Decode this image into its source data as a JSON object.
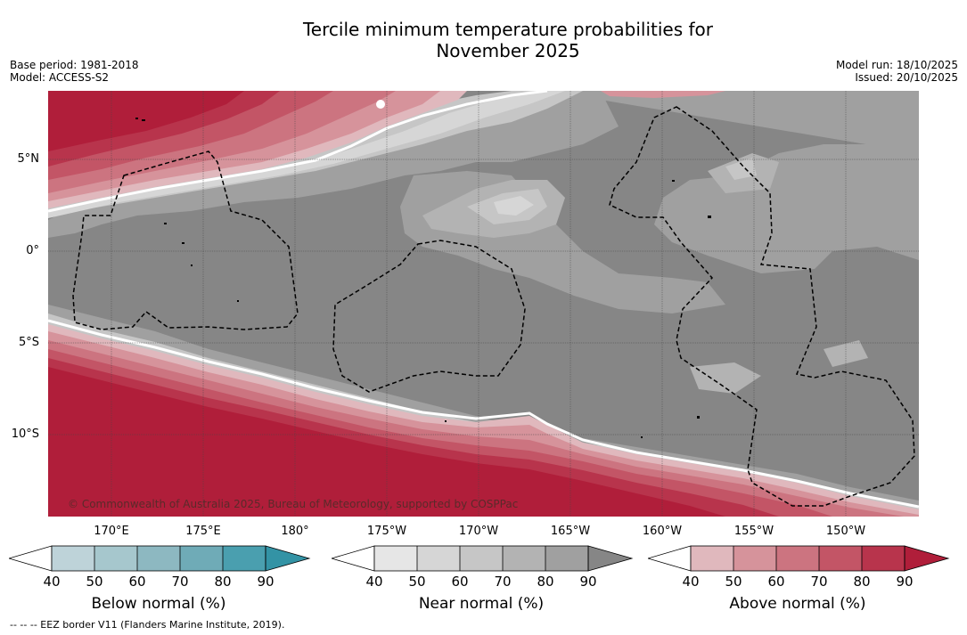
{
  "title_line1": "Tercile minimum temperature probabilities for",
  "title_line2": "November 2025",
  "base_period": "Base period: 1981-2018",
  "model": "Model: ACCESS-S2",
  "model_run": "Model run: 18/10/2025",
  "issued": "Issued: 20/10/2025",
  "lat_labels": [
    "5°N",
    "0°",
    "5°S",
    "10°S"
  ],
  "lon_labels": [
    "170°E",
    "175°E",
    "180°",
    "175°W",
    "170°W",
    "165°W",
    "160°W",
    "155°W",
    "150°W"
  ],
  "copyright": "© Commonwealth of Australia 2025, Bureau of Meteorology, supported by COSPPac",
  "colorbars": {
    "below": {
      "label": "Below normal (%)",
      "ticks": [
        "40",
        "50",
        "60",
        "70",
        "80",
        "90"
      ]
    },
    "near": {
      "label": "Near normal (%)",
      "ticks": [
        "40",
        "50",
        "60",
        "70",
        "80",
        "90"
      ]
    },
    "above": {
      "label": "Above normal (%)",
      "ticks": [
        "40",
        "50",
        "60",
        "70",
        "80",
        "90"
      ]
    }
  },
  "eez_note": "--  --  -- EEZ border V11 (Flanders Marine Institute, 2019).",
  "colors": {
    "above": [
      "#e0b8bd",
      "#d6939b",
      "#cc7480",
      "#c35566",
      "#b8344c",
      "#b01e3a"
    ],
    "near": [
      "#e6e6e6",
      "#d6d6d6",
      "#c6c6c6",
      "#b3b3b3",
      "#a0a0a0",
      "#868686"
    ],
    "below": [
      "#bed3d9",
      "#a6c7cd",
      "#8db8c1",
      "#6fabb7",
      "#4a9faf",
      "#3393a5"
    ]
  }
}
